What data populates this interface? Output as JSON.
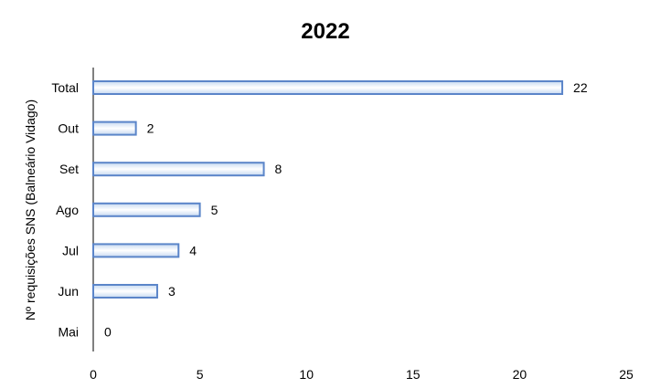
{
  "chart_data": {
    "type": "bar",
    "orientation": "horizontal",
    "title": "2022",
    "xlabel": "",
    "ylabel": "Nº requisições SNS (Balneário Vidago)",
    "categories": [
      "Total",
      "Out",
      "Set",
      "Ago",
      "Jul",
      "Jun",
      "Mai"
    ],
    "values": [
      22,
      2,
      8,
      5,
      4,
      3,
      0
    ],
    "xlim": [
      0,
      25
    ],
    "xticks": [
      0,
      5,
      10,
      15,
      20,
      25
    ],
    "grid": false,
    "legend": "none",
    "data_labels": true
  },
  "colors": {
    "bar_fill_edge": "#c6d9f1",
    "bar_fill_center": "#ffffff",
    "bar_stroke": "#5b85c9",
    "axis": "#000000"
  }
}
